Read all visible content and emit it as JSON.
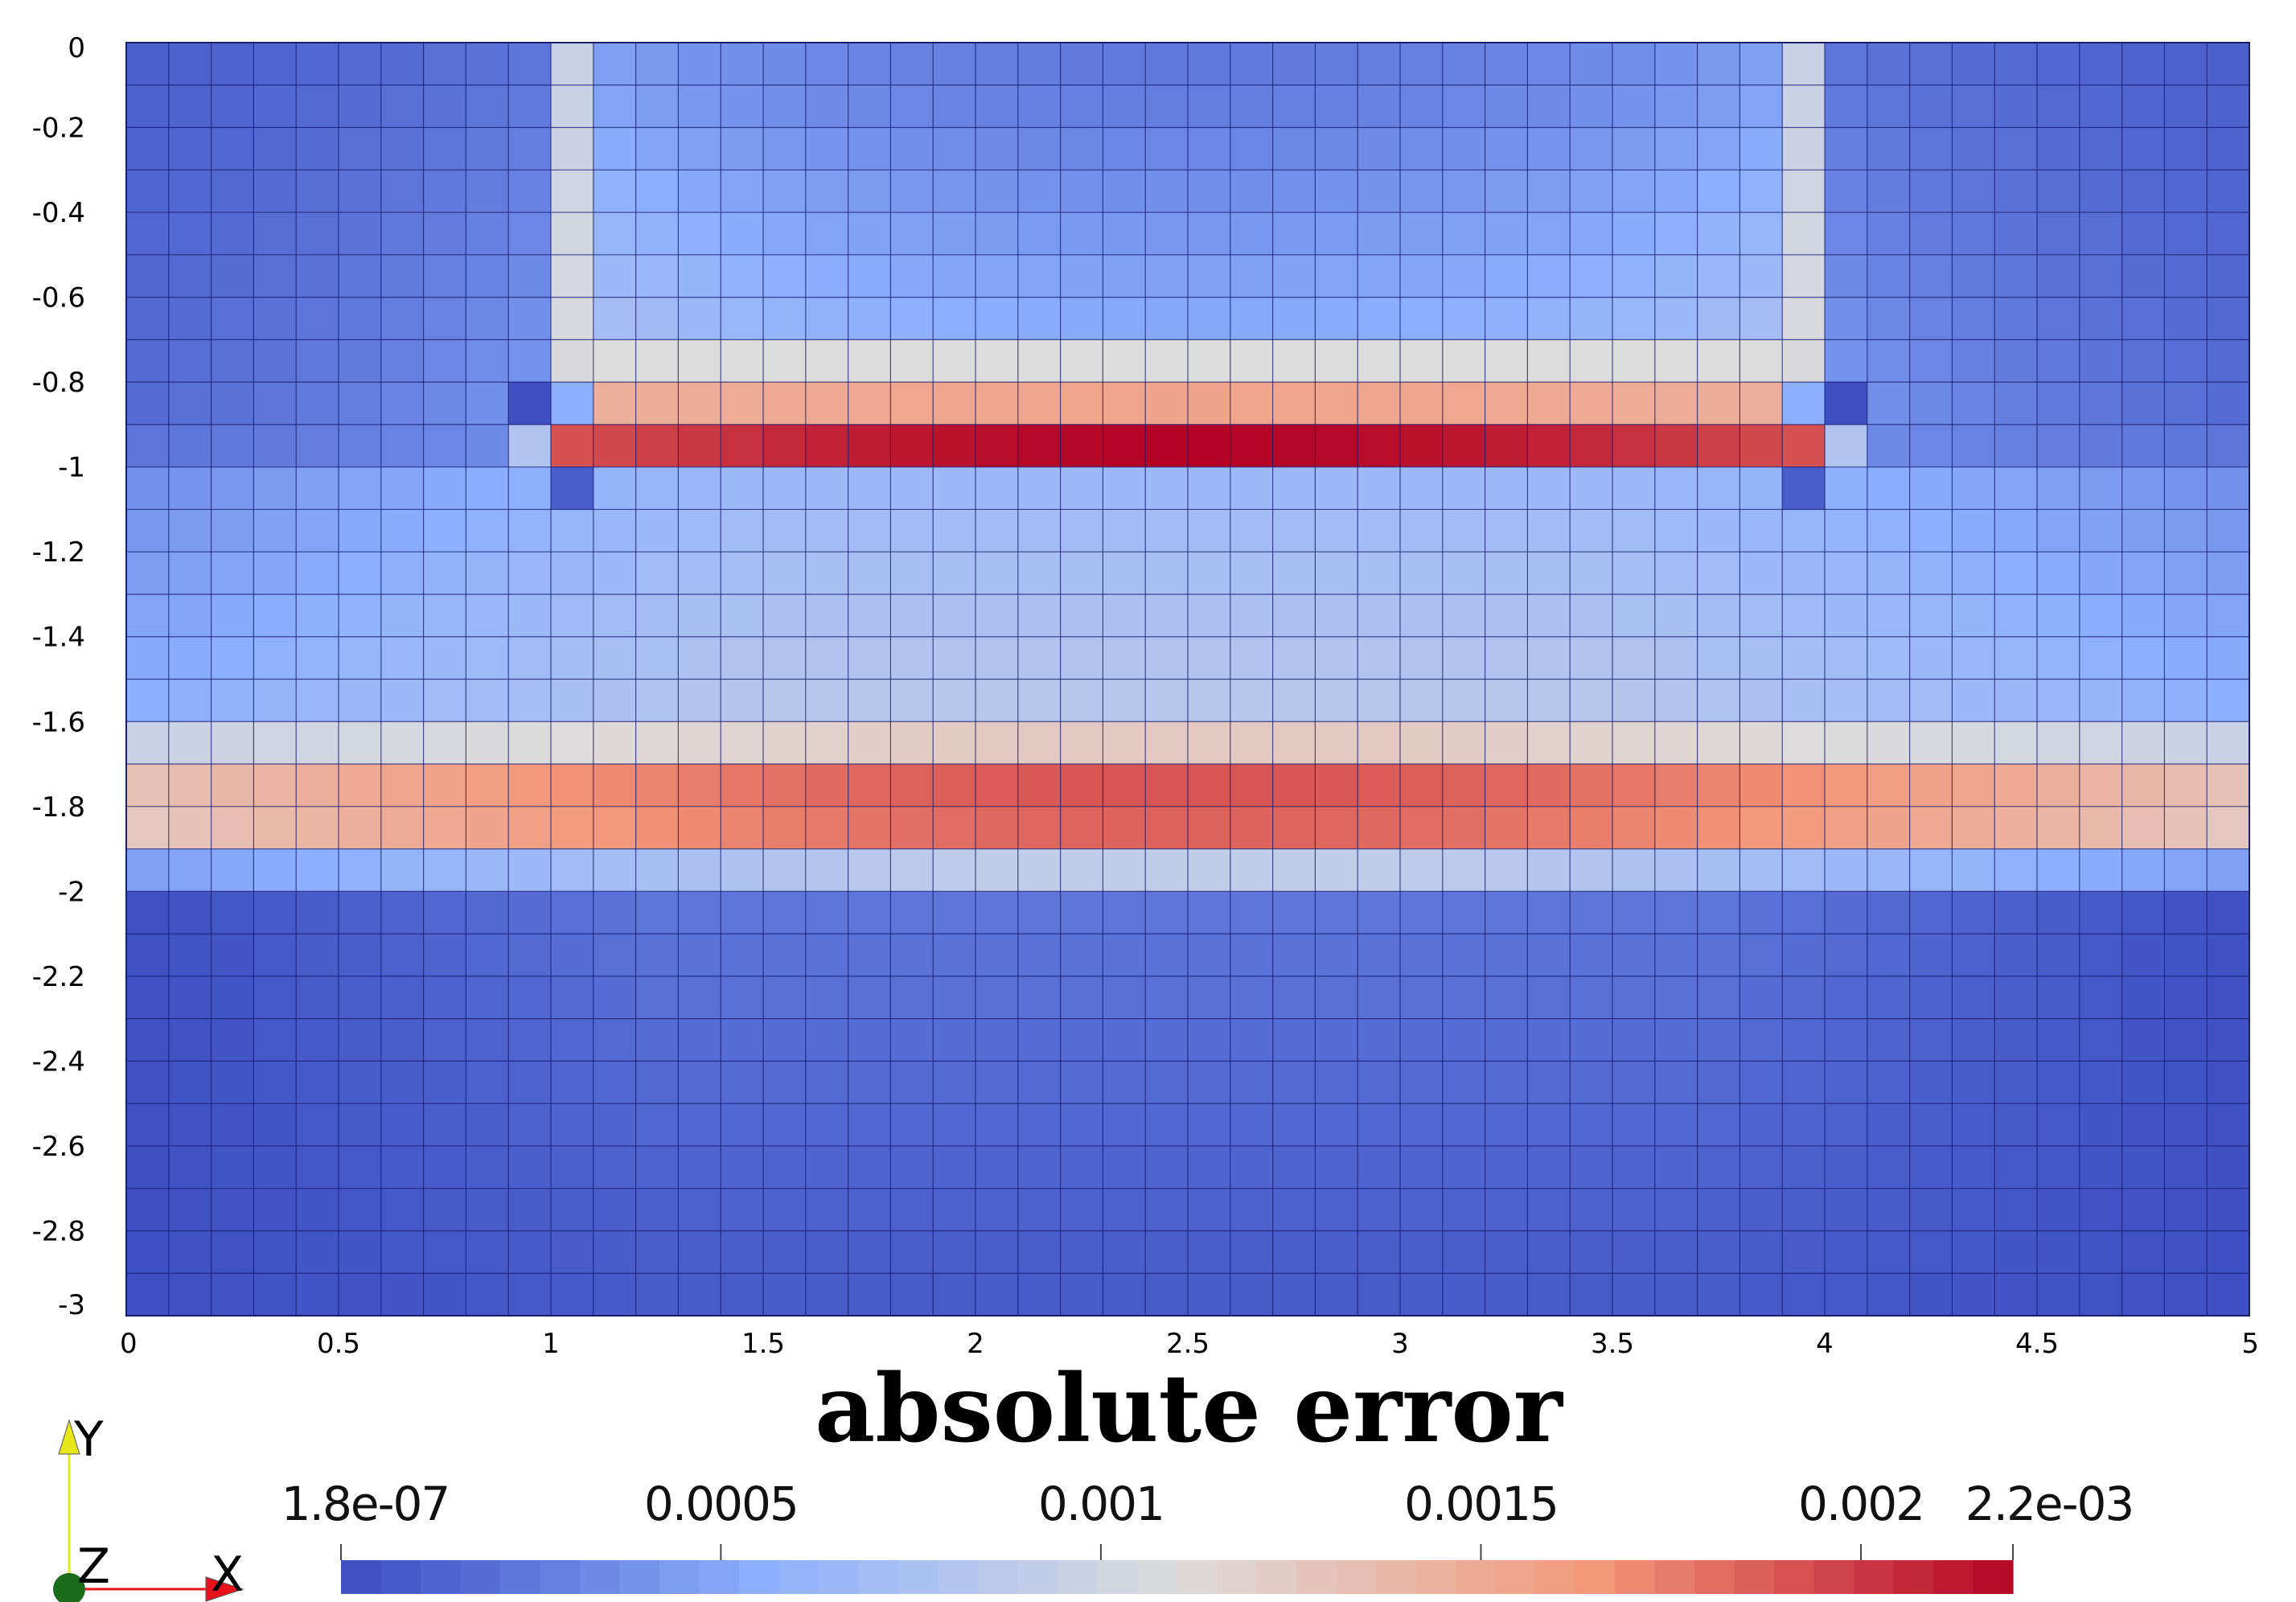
{
  "chart_data": {
    "type": "heatmap",
    "title": "",
    "xlabel": "",
    "ylabel": "",
    "xlim": [
      0,
      5
    ],
    "ylim": [
      -3,
      0
    ],
    "grid": {
      "nx": 50,
      "ny": 30,
      "cell_size": 0.1
    },
    "x_ticks": [
      "0",
      "0.5",
      "1",
      "1.5",
      "2",
      "2.5",
      "3",
      "3.5",
      "4",
      "4.5",
      "5"
    ],
    "x_tick_values": [
      0,
      0.5,
      1,
      1.5,
      2,
      2.5,
      3,
      3.5,
      4,
      4.5,
      5
    ],
    "y_ticks": [
      "0",
      "-0.2",
      "-0.4",
      "-0.6",
      "-0.8",
      "-1",
      "-1.2",
      "-1.4",
      "-1.6",
      "-1.8",
      "-2",
      "-2.2",
      "-2.4",
      "-2.6",
      "-2.8",
      "-3"
    ],
    "y_tick_values": [
      0,
      -0.2,
      -0.4,
      -0.6,
      -0.8,
      -1,
      -1.2,
      -1.4,
      -1.6,
      -1.8,
      -2,
      -2.2,
      -2.4,
      -2.6,
      -2.8,
      -3
    ],
    "field_description_regions": [
      {
        "region": "horizontal band",
        "y_range": [
          -1.0,
          -0.9
        ],
        "x_range": [
          1.0,
          4.0
        ],
        "value_range": [
          0.0019,
          0.0022
        ]
      },
      {
        "region": "horizontal band",
        "y_range": [
          -0.9,
          -0.8
        ],
        "x_range": [
          1.0,
          4.0
        ],
        "value_range": [
          0.0014,
          0.0015
        ]
      },
      {
        "region": "horizontal band",
        "y_range": [
          -1.9,
          -1.7
        ],
        "x_range": [
          0.0,
          5.0
        ],
        "value_range": [
          0.0012,
          0.0019
        ]
      },
      {
        "region": "vertical columns",
        "y_range": [
          -0.8,
          0.0
        ],
        "x_values": [
          1.05,
          3.95
        ],
        "value_range": [
          0.0008,
          0.0012
        ]
      },
      {
        "region": "background",
        "y_range": [
          -3.0,
          0.0
        ],
        "x_range": [
          0.0,
          5.0
        ],
        "value_range": [
          0.0,
          0.0005
        ]
      }
    ],
    "colorbar": {
      "title": "absolute error",
      "min": 1.8e-07,
      "max": 0.0022,
      "min_label": "1.8e-07",
      "max_label": "2.2e-03",
      "tick_values": [
        0.0005,
        0.001,
        0.0015,
        0.002
      ],
      "tick_labels": [
        "0.0005",
        "0.001",
        "0.0015",
        "0.002"
      ],
      "colormap": "cool-to-warm",
      "color_stops": [
        "#3b4cc0",
        "#8db0fe",
        "#dddcdc",
        "#f4987a",
        "#b40426"
      ],
      "segments": 42
    },
    "orientation_axes": {
      "x": {
        "label": "X",
        "color": "#e8121a"
      },
      "y": {
        "label": "Y",
        "color": "#e6e61a"
      },
      "z": {
        "label": "Z",
        "color": "#1a6b1a"
      }
    }
  }
}
